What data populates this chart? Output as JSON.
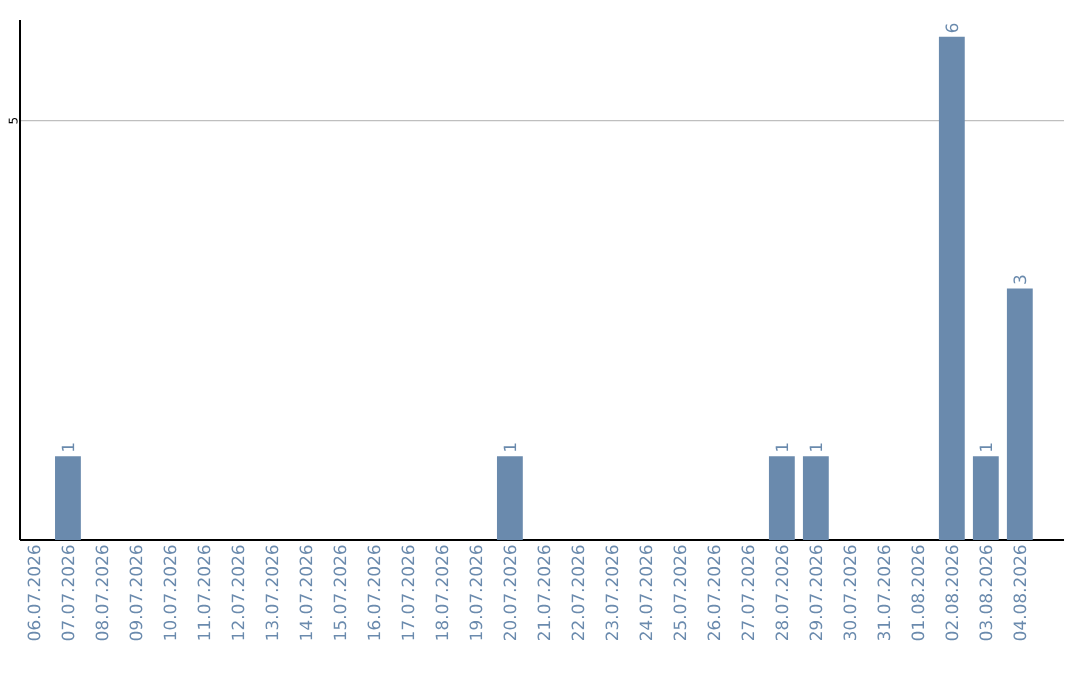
{
  "chart_data": {
    "type": "bar",
    "categories": [
      "06.07.2026",
      "07.07.2026",
      "08.07.2026",
      "09.07.2026",
      "10.07.2026",
      "11.07.2026",
      "12.07.2026",
      "13.07.2026",
      "14.07.2026",
      "15.07.2026",
      "16.07.2026",
      "17.07.2026",
      "18.07.2026",
      "19.07.2026",
      "20.07.2026",
      "21.07.2026",
      "22.07.2026",
      "23.07.2026",
      "24.07.2026",
      "25.07.2026",
      "26.07.2026",
      "27.07.2026",
      "28.07.2026",
      "29.07.2026",
      "30.07.2026",
      "31.07.2026",
      "01.08.2026",
      "02.08.2026",
      "03.08.2026",
      "04.08.2026"
    ],
    "values": [
      0,
      1,
      0,
      0,
      0,
      0,
      0,
      0,
      0,
      0,
      0,
      0,
      0,
      0,
      1,
      0,
      0,
      0,
      0,
      0,
      0,
      0,
      1,
      1,
      0,
      0,
      0,
      6,
      1,
      3
    ],
    "value_labels": [
      null,
      "1",
      null,
      null,
      null,
      null,
      null,
      null,
      null,
      null,
      null,
      null,
      null,
      null,
      "1",
      null,
      null,
      null,
      null,
      null,
      null,
      null,
      "1",
      "1",
      null,
      null,
      null,
      "6",
      "1",
      "3"
    ],
    "color": "#6a8aad",
    "ylim": [
      0,
      6.2
    ],
    "yticks": [
      5
    ],
    "grid": "y"
  }
}
